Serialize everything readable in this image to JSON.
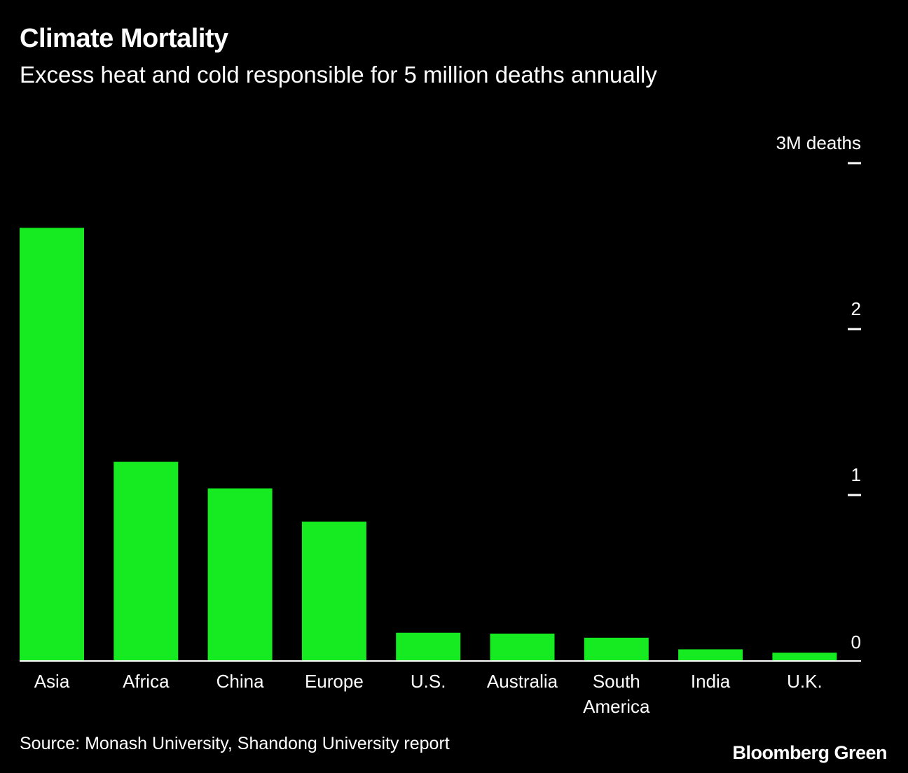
{
  "chart_data": {
    "type": "bar",
    "title": "Climate Mortality",
    "subtitle": "Excess heat and cold responsible for 5 million deaths annually",
    "categories": [
      "Asia",
      "Africa",
      "China",
      "Europe",
      "U.S.",
      "Australia",
      "South America",
      "India",
      "U.K."
    ],
    "category_lines": [
      [
        "Asia"
      ],
      [
        "Africa"
      ],
      [
        "China"
      ],
      [
        "Europe"
      ],
      [
        "U.S."
      ],
      [
        "Australia"
      ],
      [
        "South",
        "America"
      ],
      [
        "India"
      ],
      [
        "U.K."
      ]
    ],
    "values": [
      2.61,
      1.2,
      1.04,
      0.84,
      0.17,
      0.165,
      0.14,
      0.07,
      0.05
    ],
    "unit": "million deaths",
    "ylim": [
      0,
      3
    ],
    "y_ticks": [
      0,
      1,
      2,
      3
    ],
    "y_tick_labels": [
      "0",
      "1",
      "2",
      "3M deaths"
    ],
    "y_axis_position": "right",
    "grid": false,
    "bar_color": "#15eb20",
    "background": "#000000"
  },
  "source": "Source: Monash University, Shandong University report",
  "logo": "Bloomberg Green"
}
